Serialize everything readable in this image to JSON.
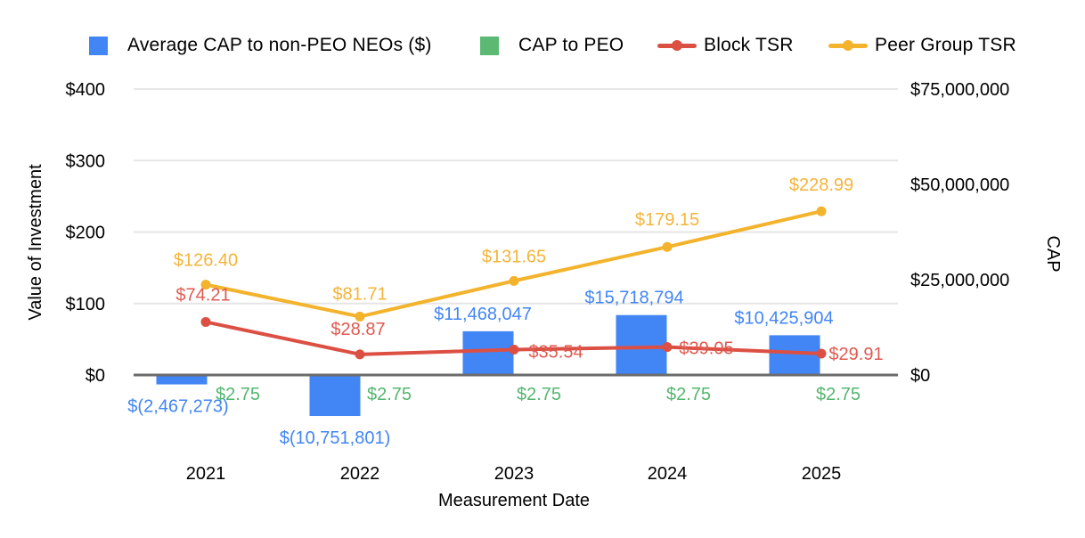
{
  "legend": {
    "items": [
      {
        "label": "Average CAP to non-PEO NEOs ($)",
        "color": "#4285F4",
        "swatch": "square"
      },
      {
        "label": "CAP to PEO",
        "color": "#5BB974",
        "swatch": "square"
      },
      {
        "label": "Block TSR",
        "color": "#DC5044",
        "swatch": "line"
      },
      {
        "label": "Peer Group TSR",
        "color": "#F3B32C",
        "swatch": "line"
      }
    ]
  },
  "chart_data": {
    "type": "combo-bar-line",
    "categories": [
      "2021",
      "2022",
      "2023",
      "2024",
      "2025"
    ],
    "xlabel": "Measurement Date",
    "grid": "horizontal-on",
    "legend_position": "top",
    "left_axis": {
      "title": "Value of Investment",
      "ticks": [
        "$0",
        "$100",
        "$200",
        "$300",
        "$400"
      ],
      "range": [
        0,
        400
      ]
    },
    "right_axis": {
      "title": "CAP",
      "ticks": [
        "$0",
        "$25,000,000",
        "$50,000,000",
        "$75,000,000"
      ],
      "tick_values": [
        0,
        25000000,
        50000000,
        75000000
      ],
      "range": [
        0,
        75000000
      ]
    },
    "series": [
      {
        "name": "Average CAP to non-PEO NEOs ($)",
        "type": "bar",
        "axis": "right",
        "color": "#4285F4",
        "label_color": "#4285F4",
        "values": [
          -2467273,
          -10751801,
          11468047,
          15718794,
          10425904
        ],
        "labels": [
          "$(2,467,273)",
          "$(10,751,801)",
          "$11,468,047",
          "$15,718,794",
          "$10,425,904"
        ]
      },
      {
        "name": "CAP to PEO",
        "type": "bar",
        "axis": "right",
        "color": "#5BB974",
        "label_color": "#53B66E",
        "values": [
          2.75,
          2.75,
          2.75,
          2.75,
          2.75
        ],
        "labels": [
          "$2.75",
          "$2.75",
          "$2.75",
          "$2.75",
          "$2.75"
        ]
      },
      {
        "name": "Block TSR",
        "type": "line",
        "axis": "left",
        "color": "#DC5044",
        "label_color": "#E05A50",
        "values": [
          74.21,
          28.87,
          35.54,
          39.05,
          29.91
        ],
        "labels": [
          "$74.21",
          "$28.87",
          "$35.54",
          "$39.05",
          "$29.91"
        ]
      },
      {
        "name": "Peer Group TSR",
        "type": "line",
        "axis": "left",
        "color": "#F3B32C",
        "label_color": "#F5B43A",
        "values": [
          126.4,
          81.71,
          131.65,
          179.15,
          228.99
        ],
        "labels": [
          "$126.40",
          "$81.71",
          "$131.65",
          "$179.15",
          "$228.99"
        ]
      }
    ]
  }
}
